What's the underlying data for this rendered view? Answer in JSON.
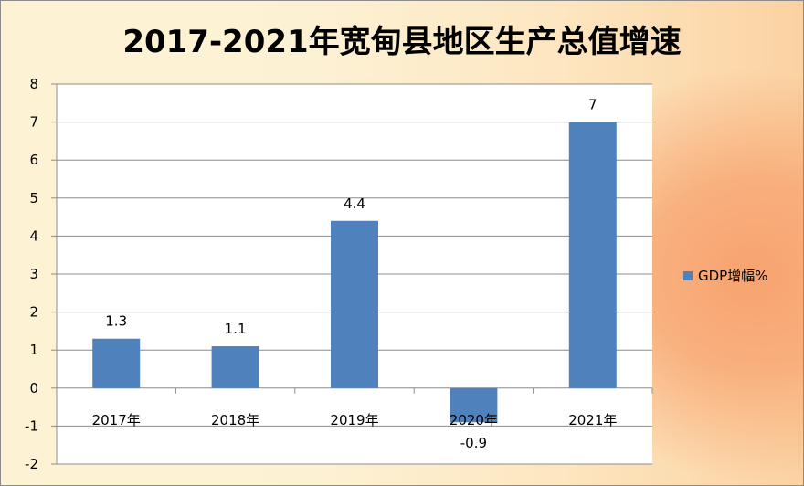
{
  "chart_data": {
    "type": "bar",
    "title": "2017-2021年宽甸县地区生产总值增速",
    "categories": [
      "2017年",
      "2018年",
      "2019年",
      "2020年",
      "2021年"
    ],
    "series": [
      {
        "name": "GDP增幅%",
        "values": [
          1.3,
          1.1,
          4.4,
          -0.9,
          7
        ],
        "color": "#4f81bd"
      }
    ],
    "data_labels": [
      "1.3",
      "1.1",
      "4.4",
      "-0.9",
      "7"
    ],
    "y_ticks": [
      "8",
      "7",
      "6",
      "5",
      "4",
      "3",
      "2",
      "1",
      "0",
      "-1",
      "-2"
    ],
    "ylim": [
      -2,
      8
    ],
    "grid": true,
    "legend_position": "right"
  }
}
